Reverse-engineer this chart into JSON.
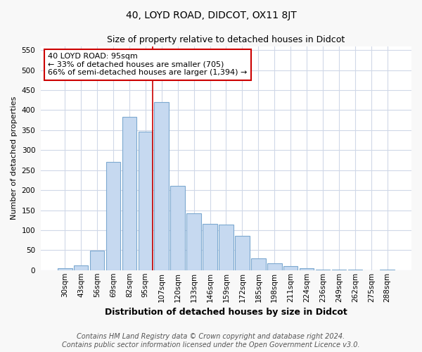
{
  "title": "40, LOYD ROAD, DIDCOT, OX11 8JT",
  "subtitle": "Size of property relative to detached houses in Didcot",
  "xlabel": "Distribution of detached houses by size in Didcot",
  "ylabel": "Number of detached properties",
  "categories": [
    "30sqm",
    "43sqm",
    "56sqm",
    "69sqm",
    "82sqm",
    "95sqm",
    "107sqm",
    "120sqm",
    "133sqm",
    "146sqm",
    "159sqm",
    "172sqm",
    "185sqm",
    "198sqm",
    "211sqm",
    "224sqm",
    "236sqm",
    "249sqm",
    "262sqm",
    "275sqm",
    "288sqm"
  ],
  "values": [
    5,
    12,
    49,
    271,
    383,
    347,
    420,
    210,
    143,
    116,
    114,
    86,
    29,
    18,
    10,
    4,
    1,
    2,
    1,
    0,
    1
  ],
  "bar_color": "#c6d9f0",
  "bar_edge_color": "#7da9d0",
  "vline_color": "#cc0000",
  "vline_index": 5,
  "annotation_text": "40 LOYD ROAD: 95sqm\n← 33% of detached houses are smaller (705)\n66% of semi-detached houses are larger (1,394) →",
  "annotation_box_facecolor": "#ffffff",
  "annotation_box_edgecolor": "#cc0000",
  "ylim": [
    0,
    560
  ],
  "yticks": [
    0,
    50,
    100,
    150,
    200,
    250,
    300,
    350,
    400,
    450,
    500,
    550
  ],
  "grid_color": "#d0d8e8",
  "bg_color": "#ffffff",
  "fig_bg_color": "#f8f8f8",
  "title_fontsize": 10,
  "subtitle_fontsize": 9,
  "xlabel_fontsize": 9,
  "ylabel_fontsize": 8,
  "tick_fontsize": 7.5,
  "annotation_fontsize": 8,
  "footer_fontsize": 7,
  "footer": "Contains HM Land Registry data © Crown copyright and database right 2024.\nContains public sector information licensed under the Open Government Licence v3.0."
}
